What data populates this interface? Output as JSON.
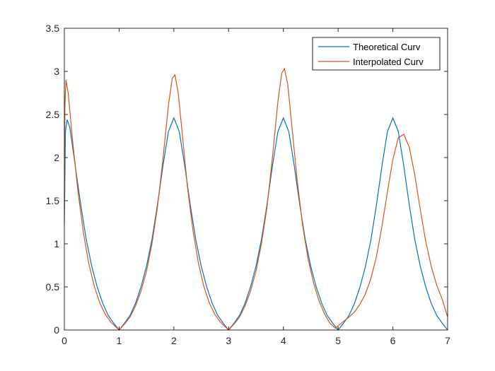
{
  "chart_data": {
    "type": "line",
    "title": "",
    "xlabel": "",
    "ylabel": "",
    "xlim": [
      0,
      7
    ],
    "ylim": [
      0,
      3.5
    ],
    "xticks": [
      "0",
      "1",
      "2",
      "3",
      "4",
      "5",
      "6",
      "7"
    ],
    "yticks": [
      "0",
      "0.5",
      "1",
      "1.5",
      "2",
      "2.5",
      "3",
      "3.5"
    ],
    "grid": false,
    "legend_position": "top-right",
    "series": [
      {
        "name": "Theoretical Curv",
        "color": "#0072BD",
        "points": [
          [
            0,
            1.22
          ],
          [
            0.02,
            2.3
          ],
          [
            0.05,
            2.44
          ],
          [
            0.1,
            2.35
          ],
          [
            0.2,
            1.9
          ],
          [
            0.3,
            1.45
          ],
          [
            0.4,
            1.05
          ],
          [
            0.5,
            0.74
          ],
          [
            0.6,
            0.5
          ],
          [
            0.7,
            0.31
          ],
          [
            0.8,
            0.17
          ],
          [
            0.9,
            0.08
          ],
          [
            1.0,
            0.0
          ],
          [
            1.1,
            0.08
          ],
          [
            1.2,
            0.17
          ],
          [
            1.3,
            0.31
          ],
          [
            1.4,
            0.5
          ],
          [
            1.5,
            0.74
          ],
          [
            1.6,
            1.05
          ],
          [
            1.7,
            1.45
          ],
          [
            1.8,
            1.9
          ],
          [
            1.9,
            2.3
          ],
          [
            2.0,
            2.46
          ],
          [
            2.1,
            2.3
          ],
          [
            2.2,
            1.9
          ],
          [
            2.3,
            1.45
          ],
          [
            2.4,
            1.05
          ],
          [
            2.5,
            0.74
          ],
          [
            2.6,
            0.5
          ],
          [
            2.7,
            0.31
          ],
          [
            2.8,
            0.17
          ],
          [
            2.9,
            0.08
          ],
          [
            3.0,
            0.0
          ],
          [
            3.1,
            0.08
          ],
          [
            3.2,
            0.17
          ],
          [
            3.3,
            0.31
          ],
          [
            3.4,
            0.5
          ],
          [
            3.5,
            0.74
          ],
          [
            3.6,
            1.05
          ],
          [
            3.7,
            1.45
          ],
          [
            3.8,
            1.9
          ],
          [
            3.9,
            2.3
          ],
          [
            4.0,
            2.46
          ],
          [
            4.1,
            2.3
          ],
          [
            4.2,
            1.9
          ],
          [
            4.3,
            1.45
          ],
          [
            4.4,
            1.05
          ],
          [
            4.5,
            0.74
          ],
          [
            4.6,
            0.5
          ],
          [
            4.7,
            0.31
          ],
          [
            4.8,
            0.17
          ],
          [
            4.9,
            0.08
          ],
          [
            5.0,
            0.0
          ],
          [
            5.1,
            0.08
          ],
          [
            5.2,
            0.17
          ],
          [
            5.3,
            0.31
          ],
          [
            5.4,
            0.5
          ],
          [
            5.5,
            0.74
          ],
          [
            5.6,
            1.05
          ],
          [
            5.7,
            1.45
          ],
          [
            5.8,
            1.9
          ],
          [
            5.9,
            2.3
          ],
          [
            6.0,
            2.46
          ],
          [
            6.1,
            2.3
          ],
          [
            6.2,
            1.9
          ],
          [
            6.3,
            1.45
          ],
          [
            6.4,
            1.05
          ],
          [
            6.5,
            0.74
          ],
          [
            6.6,
            0.5
          ],
          [
            6.7,
            0.31
          ],
          [
            6.8,
            0.17
          ],
          [
            6.9,
            0.08
          ],
          [
            7.0,
            0.0
          ]
        ]
      },
      {
        "name": "Interpolated Curv",
        "color": "#D95319",
        "points": [
          [
            0,
            1.4
          ],
          [
            0.01,
            2.6
          ],
          [
            0.03,
            2.9
          ],
          [
            0.07,
            2.75
          ],
          [
            0.15,
            2.2
          ],
          [
            0.25,
            1.6
          ],
          [
            0.35,
            1.12
          ],
          [
            0.45,
            0.76
          ],
          [
            0.55,
            0.5
          ],
          [
            0.65,
            0.31
          ],
          [
            0.75,
            0.18
          ],
          [
            0.85,
            0.09
          ],
          [
            0.95,
            0.03
          ],
          [
            1.0,
            0.0
          ],
          [
            1.1,
            0.07
          ],
          [
            1.2,
            0.15
          ],
          [
            1.3,
            0.28
          ],
          [
            1.4,
            0.45
          ],
          [
            1.5,
            0.68
          ],
          [
            1.6,
            1.0
          ],
          [
            1.7,
            1.42
          ],
          [
            1.8,
            1.98
          ],
          [
            1.9,
            2.6
          ],
          [
            1.97,
            2.92
          ],
          [
            2.02,
            2.96
          ],
          [
            2.08,
            2.75
          ],
          [
            2.15,
            2.3
          ],
          [
            2.25,
            1.65
          ],
          [
            2.35,
            1.15
          ],
          [
            2.45,
            0.77
          ],
          [
            2.55,
            0.5
          ],
          [
            2.65,
            0.31
          ],
          [
            2.75,
            0.18
          ],
          [
            2.85,
            0.09
          ],
          [
            2.95,
            0.03
          ],
          [
            3.0,
            0.0
          ],
          [
            3.1,
            0.07
          ],
          [
            3.2,
            0.15
          ],
          [
            3.3,
            0.28
          ],
          [
            3.4,
            0.45
          ],
          [
            3.5,
            0.68
          ],
          [
            3.6,
            1.0
          ],
          [
            3.7,
            1.42
          ],
          [
            3.8,
            2.0
          ],
          [
            3.9,
            2.65
          ],
          [
            3.97,
            2.98
          ],
          [
            4.02,
            3.03
          ],
          [
            4.08,
            2.85
          ],
          [
            4.15,
            2.4
          ],
          [
            4.25,
            1.75
          ],
          [
            4.35,
            1.22
          ],
          [
            4.45,
            0.83
          ],
          [
            4.55,
            0.55
          ],
          [
            4.65,
            0.34
          ],
          [
            4.75,
            0.19
          ],
          [
            4.85,
            0.08
          ],
          [
            4.95,
            0.02
          ],
          [
            5.0,
            0.05
          ],
          [
            5.1,
            0.1
          ],
          [
            5.2,
            0.15
          ],
          [
            5.3,
            0.21
          ],
          [
            5.4,
            0.3
          ],
          [
            5.5,
            0.42
          ],
          [
            5.6,
            0.6
          ],
          [
            5.7,
            0.85
          ],
          [
            5.8,
            1.2
          ],
          [
            5.9,
            1.6
          ],
          [
            6.0,
            1.98
          ],
          [
            6.1,
            2.23
          ],
          [
            6.2,
            2.27
          ],
          [
            6.3,
            2.12
          ],
          [
            6.4,
            1.8
          ],
          [
            6.5,
            1.4
          ],
          [
            6.6,
            1.03
          ],
          [
            6.7,
            0.74
          ],
          [
            6.8,
            0.52
          ],
          [
            6.9,
            0.36
          ],
          [
            7.0,
            0.15
          ]
        ]
      }
    ]
  }
}
